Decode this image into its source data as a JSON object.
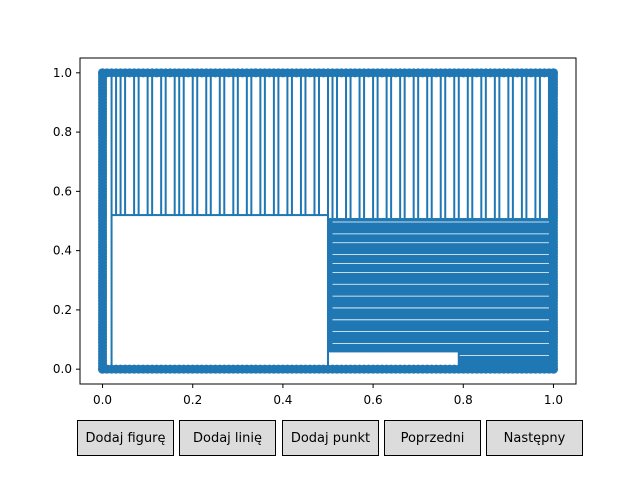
{
  "colors": {
    "line": "#1f77b4",
    "axes": "#000000",
    "button_bg": "#dcdcdc"
  },
  "buttons": {
    "add_figure": "Dodaj figurę",
    "add_line": "Dodaj linię",
    "add_point": "Dodaj punkt",
    "previous": "Poprzedni",
    "next": "Następny"
  },
  "chart_data": {
    "type": "line",
    "title": "",
    "xlabel": "",
    "ylabel": "",
    "xlim": [
      -0.05,
      1.05
    ],
    "ylim": [
      -0.05,
      1.05
    ],
    "xticks": [
      "0.0",
      "0.2",
      "0.4",
      "0.6",
      "0.8",
      "1.0"
    ],
    "yticks": [
      "0.0",
      "0.2",
      "0.4",
      "0.6",
      "0.8",
      "1.0"
    ],
    "grid": false,
    "markers": true,
    "segments": {
      "upper_zigzag_x": [
        0.02,
        0.03,
        0.04,
        0.05,
        0.07,
        0.08,
        0.1,
        0.11,
        0.13,
        0.14,
        0.16,
        0.17,
        0.18,
        0.2,
        0.21,
        0.23,
        0.24,
        0.26,
        0.27,
        0.29,
        0.3,
        0.32,
        0.33,
        0.35,
        0.36,
        0.38,
        0.39,
        0.41,
        0.42,
        0.44,
        0.45,
        0.47,
        0.48,
        0.5,
        0.51,
        0.52,
        0.54,
        0.55,
        0.57,
        0.58,
        0.6,
        0.61,
        0.63,
        0.64,
        0.66,
        0.67,
        0.69,
        0.7,
        0.72,
        0.73,
        0.75,
        0.76,
        0.78,
        0.79,
        0.81,
        0.82,
        0.84,
        0.85,
        0.87,
        0.88,
        0.9,
        0.91,
        0.93,
        0.94,
        0.96,
        0.97,
        0.99
      ],
      "upper_zigzag_y_low": [
        0.52,
        0.52,
        0.52,
        0.52,
        0.52,
        0.52,
        0.52,
        0.52,
        0.52,
        0.52,
        0.52,
        0.52,
        0.52,
        0.52,
        0.52,
        0.52,
        0.52,
        0.52,
        0.52,
        0.52,
        0.52,
        0.52,
        0.52,
        0.52,
        0.52,
        0.52,
        0.52,
        0.52,
        0.52,
        0.52,
        0.52,
        0.52,
        0.52,
        0.52,
        0.51,
        0.51,
        0.51,
        0.51,
        0.51,
        0.51,
        0.51,
        0.51,
        0.51,
        0.51,
        0.51,
        0.51,
        0.51,
        0.51,
        0.51,
        0.51,
        0.51,
        0.51,
        0.51,
        0.51,
        0.51,
        0.51,
        0.51,
        0.51,
        0.51,
        0.51,
        0.51,
        0.51,
        0.51,
        0.51,
        0.51,
        0.51,
        0.51
      ],
      "lower_right_rows_y": [
        0.5,
        0.48,
        0.46,
        0.44,
        0.43,
        0.41,
        0.39,
        0.38,
        0.36,
        0.34,
        0.33,
        0.31,
        0.29,
        0.27,
        0.25,
        0.23,
        0.21,
        0.19,
        0.17,
        0.15,
        0.13,
        0.11,
        0.09,
        0.07,
        0.05,
        0.03
      ],
      "white_box_left": {
        "x0": 0.02,
        "x1": 0.5,
        "y0": 0.0,
        "y1": 0.52
      },
      "white_box_right_bottom": {
        "x0": 0.5,
        "x1": 0.79,
        "y0": 0.0,
        "y1": 0.06
      }
    }
  }
}
